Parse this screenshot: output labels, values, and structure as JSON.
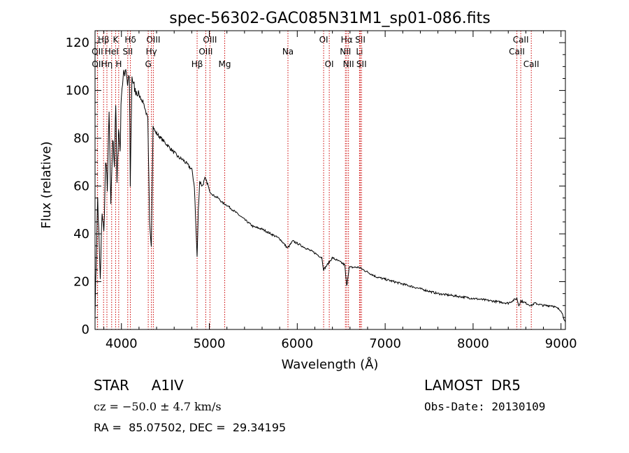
{
  "chart_data": {
    "type": "line",
    "title": "spec-56302-GAC085N31M1_sp01-086.fits",
    "xlabel": "Wavelength (Å)",
    "ylabel": "Flux (relative)",
    "xlim": [
      3700,
      9050
    ],
    "ylim": [
      0,
      125
    ],
    "x_ticks": [
      4000,
      5000,
      6000,
      7000,
      8000,
      9000
    ],
    "y_ticks": [
      0,
      20,
      40,
      60,
      80,
      100,
      120
    ],
    "series": [
      {
        "color": "#000000",
        "x": [
          3700,
          3730,
          3760,
          3780,
          3800,
          3820,
          3840,
          3860,
          3880,
          3900,
          3920,
          3935,
          3950,
          3968,
          3985,
          4000,
          4020,
          4050,
          4070,
          4090,
          4101,
          4120,
          4150,
          4200,
          4250,
          4300,
          4320,
          4340,
          4360,
          4380,
          4400,
          4450,
          4500,
          4550,
          4600,
          4650,
          4700,
          4750,
          4800,
          4830,
          4850,
          4861,
          4875,
          4890,
          4920,
          4950,
          4980,
          5000,
          5050,
          5100,
          5150,
          5200,
          5300,
          5400,
          5500,
          5600,
          5700,
          5800,
          5890,
          5950,
          6000,
          6100,
          6200,
          6280,
          6300,
          6400,
          6500,
          6540,
          6563,
          6590,
          6650,
          6700,
          6800,
          6900,
          7000,
          7200,
          7400,
          7600,
          7800,
          8000,
          8200,
          8400,
          8498,
          8520,
          8542,
          8600,
          8662,
          8700,
          8800,
          8900,
          9000,
          9050
        ],
        "y": [
          8,
          55,
          20,
          50,
          40,
          70,
          60,
          90,
          50,
          80,
          70,
          95,
          60,
          85,
          75,
          100,
          105,
          110,
          103,
          107,
          60,
          105,
          100,
          98,
          95,
          88,
          45,
          35,
          85,
          83,
          82,
          80,
          78,
          76,
          74,
          72,
          71,
          69,
          67,
          60,
          40,
          30,
          50,
          62,
          60,
          63,
          61,
          58,
          56,
          55,
          53,
          52,
          49,
          46,
          43,
          42,
          40,
          38,
          34,
          37,
          36,
          34,
          32,
          30,
          25,
          30,
          28,
          27,
          18,
          26,
          26,
          26,
          24,
          22,
          21,
          19,
          17,
          15,
          14,
          13,
          12,
          11,
          13,
          10,
          12,
          11,
          10,
          11,
          10,
          10,
          8,
          3
        ]
      }
    ],
    "line_markers": [
      {
        "label": "Hβ",
        "wave": 3797,
        "row": 0
      },
      {
        "label": "OII",
        "wave": 3727,
        "row": 1
      },
      {
        "label": "OII",
        "wave": 3729,
        "row": 2
      },
      {
        "label": "K",
        "wave": 3934,
        "row": 0
      },
      {
        "label": "HeI",
        "wave": 3889,
        "row": 1
      },
      {
        "label": "Hη",
        "wave": 3835,
        "row": 2
      },
      {
        "label": "Hδ",
        "wave": 4102,
        "row": 0
      },
      {
        "label": "SII",
        "wave": 4072,
        "row": 1
      },
      {
        "label": "H",
        "wave": 3969,
        "row": 2
      },
      {
        "label": "OIII",
        "wave": 4363,
        "row": 0
      },
      {
        "label": "Hγ",
        "wave": 4341,
        "row": 1
      },
      {
        "label": "G",
        "wave": 4305,
        "row": 2
      },
      {
        "label": "OIII",
        "wave": 5007,
        "row": 0
      },
      {
        "label": "OIII",
        "wave": 4959,
        "row": 1
      },
      {
        "label": "Hβ",
        "wave": 4861,
        "row": 2
      },
      {
        "label": "Mg",
        "wave": 5175,
        "row": 2
      },
      {
        "label": "Na",
        "wave": 5894,
        "row": 1
      },
      {
        "label": "OI",
        "wave": 6300,
        "row": 0
      },
      {
        "label": "OI",
        "wave": 6364,
        "row": 2
      },
      {
        "label": "Hα",
        "wave": 6563,
        "row": 0
      },
      {
        "label": "NII",
        "wave": 6548,
        "row": 1
      },
      {
        "label": "NII",
        "wave": 6583,
        "row": 2
      },
      {
        "label": "SII",
        "wave": 6717,
        "row": 0
      },
      {
        "label": "Li",
        "wave": 6708,
        "row": 1
      },
      {
        "label": "SII",
        "wave": 6731,
        "row": 2
      },
      {
        "label": "CaII",
        "wave": 8542,
        "row": 0
      },
      {
        "label": "CaII",
        "wave": 8498,
        "row": 1
      },
      {
        "label": "CaII",
        "wave": 8662,
        "row": 2
      }
    ],
    "marker_color": "#cc0000",
    "grid": false,
    "legend": "none"
  },
  "info": {
    "spec_type": "STAR     A1IV",
    "cz": "cz = −50.0 ± 4.7 km/s",
    "radec": "RA =  85.07502, DEC =  29.34195",
    "survey": "LAMOST  DR5",
    "obs_date": "Obs-Date: 20130109"
  }
}
